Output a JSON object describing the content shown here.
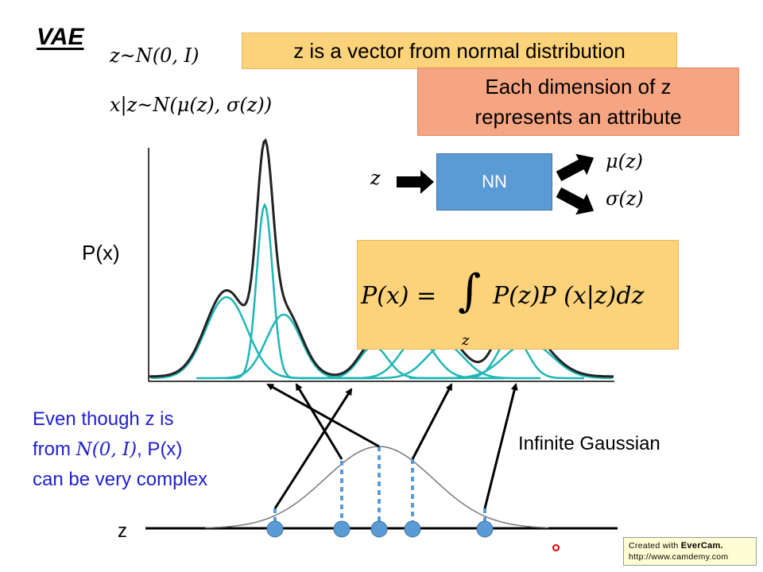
{
  "title": "VAE",
  "formulas": {
    "prior": "z~N(0, I)",
    "likelihood": "x|z~N(μ(z), σ(z))"
  },
  "callouts": {
    "vector": "z is a vector from normal distribution",
    "attribute_line1": "Each dimension of z",
    "attribute_line2": "represents an attribute"
  },
  "network": {
    "input": "z",
    "box": "NN",
    "output_mu": "μ(z)",
    "output_sigma": "σ(z)"
  },
  "plot": {
    "y_label": "P(x)"
  },
  "integral": {
    "lhs": "P(x) =",
    "sign": "∫",
    "subscript": "z",
    "rhs": "P(z)P (x|z)dz"
  },
  "note": {
    "part1": "Even though z is",
    "part2_prefix": "from ",
    "part2_formula": "N(0, I)",
    "part2_suffix": ", P(x)",
    "part3": "can be very complex"
  },
  "labels": {
    "infinite_gaussian": "Infinite Gaussian",
    "z_axis": "z"
  },
  "watermark": {
    "prefix": "Created with ",
    "brand": "EverCam.",
    "url": "http://www.camdemy.com"
  },
  "colors": {
    "component_curve": "#1fb5b5",
    "mixture_curve": "#222222",
    "sample_point": "#5b9bd5",
    "note_text": "#1f1fd0",
    "callout_yellow": "#fcd37a",
    "callout_orange": "#f6a583",
    "nn_box": "#5b9bd5"
  }
}
